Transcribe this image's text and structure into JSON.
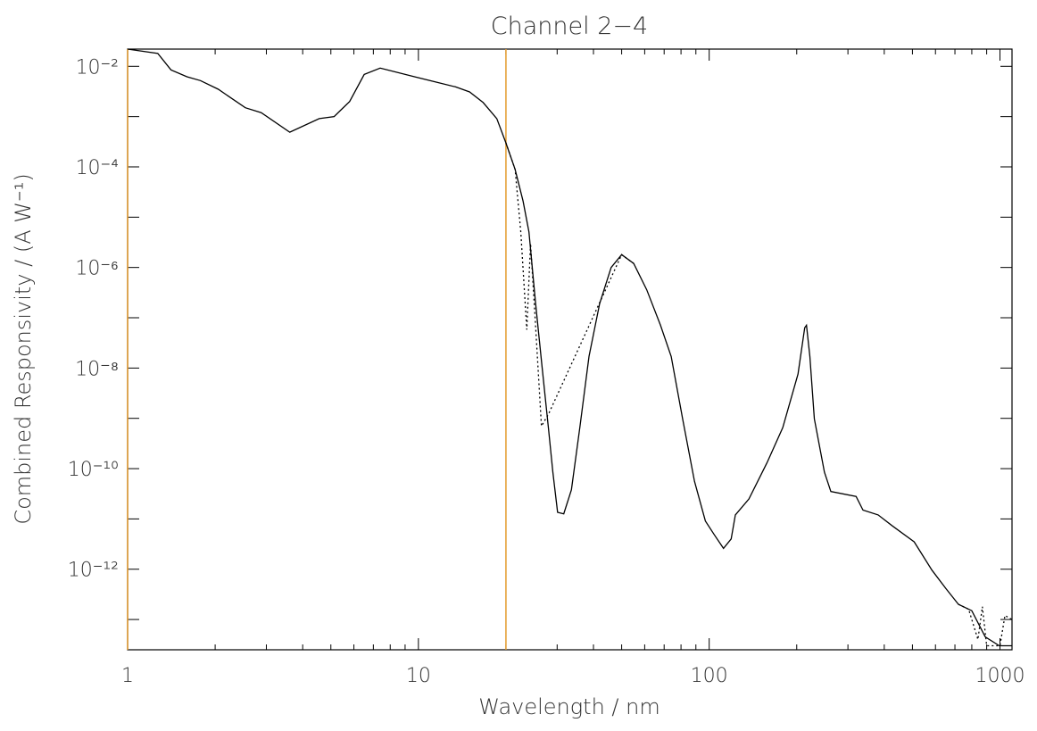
{
  "chart_data": {
    "type": "line",
    "title": "Channel 2−4",
    "x_label": "Wavelength / nm",
    "y_label": "Combined Responsivity / (A W⁻¹)",
    "xscale": "log",
    "yscale": "log",
    "xlim": [
      1,
      1100
    ],
    "ylim": [
      2.5e-14,
      0.022
    ],
    "xticks": [
      1,
      10,
      100,
      1000
    ],
    "xminor": [
      2,
      3,
      4,
      5,
      6,
      7,
      8,
      9,
      20,
      30,
      40,
      50,
      60,
      70,
      80,
      90,
      200,
      300,
      400,
      500,
      600,
      700,
      800,
      900
    ],
    "yticks": [
      {
        "value": 1e-12,
        "label": "10⁻¹²"
      },
      {
        "value": 1e-10,
        "label": "10⁻¹⁰"
      },
      {
        "value": 1e-08,
        "label": "10⁻⁸"
      },
      {
        "value": 1e-06,
        "label": "10⁻⁶"
      },
      {
        "value": 0.0001,
        "label": "10⁻⁴"
      },
      {
        "value": 0.01,
        "label": "10⁻²"
      }
    ],
    "yminor": [
      1e-13,
      1e-11,
      1e-09,
      1e-07,
      1e-05,
      0.001
    ],
    "vlines": [
      {
        "x": 1,
        "color": "#e39a2c"
      },
      {
        "x": 20,
        "color": "#e39a2c"
      }
    ],
    "series": [
      {
        "color": "#000000",
        "line_style": "solid",
        "x": [
          1,
          1.27,
          1.41,
          1.6,
          1.78,
          2.05,
          2.54,
          2.88,
          3.61,
          4.56,
          5.13,
          5.8,
          6.51,
          7.39,
          9.7,
          11.6,
          13.4,
          15,
          16.7,
          18.6,
          20,
          21.5,
          22.9,
          24,
          25.3,
          26.6,
          28,
          29,
          30.1,
          31.6,
          33.6,
          35.9,
          38.6,
          42,
          46,
          50,
          55,
          61,
          68,
          74,
          81,
          89,
          97,
          104,
          112,
          119,
          123,
          137,
          158,
          179,
          202,
          213,
          216,
          222,
          230,
          249,
          262,
          320,
          338,
          381,
          425,
          507,
          583,
          650,
          720,
          800,
          890,
          995,
          1100
        ],
        "values": [
          0.022,
          0.018,
          0.0085,
          0.0062,
          0.0052,
          0.0035,
          0.0015,
          0.0012,
          0.00049,
          0.00091,
          0.001,
          0.002,
          0.0069,
          0.0092,
          0.0062,
          0.0048,
          0.0039,
          0.0031,
          0.0019,
          0.00091,
          0.0003,
          8.9e-05,
          2.1e-05,
          5.1e-06,
          1.9e-07,
          1.1e-08,
          6.5e-10,
          8.5e-11,
          1.35e-11,
          1.26e-11,
          3.8e-11,
          6.5e-10,
          1.7e-08,
          1.9e-07,
          1e-06,
          1.8e-06,
          1.2e-06,
          3.6e-07,
          7.1e-08,
          1.7e-08,
          9.8e-10,
          5.6e-11,
          9.1e-12,
          4.9e-12,
          2.6e-12,
          4e-12,
          1.2e-11,
          2.5e-11,
          1.3e-10,
          6.5e-10,
          7.6e-09,
          6.3e-08,
          7.1e-08,
          1.7e-08,
          9.8e-10,
          8.5e-11,
          3.5e-11,
          2.8e-11,
          1.5e-11,
          1.2e-11,
          7.4e-12,
          3.5e-12,
          9.6e-13,
          4.2e-13,
          2e-13,
          1.5e-13,
          4.5e-14,
          3e-14,
          3e-14
        ]
      },
      {
        "color": "#000000",
        "line_style": "dotted",
        "x": [
          20,
          21.5,
          22.5,
          23.6,
          24.3,
          25.2,
          26.5,
          28,
          50,
          55,
          null,
          720,
          780,
          840,
          870,
          900,
          1000,
          1040,
          1100
        ],
        "values": [
          0.0003,
          8.9e-05,
          5e-06,
          5.8e-08,
          3e-06,
          1e-07,
          7e-10,
          1.2e-09,
          1.8e-06,
          1.2e-06,
          null,
          2e-13,
          1.6e-13,
          4e-14,
          1.8e-13,
          3e-14,
          3e-14,
          1.2e-13,
          1e-13
        ]
      }
    ]
  }
}
